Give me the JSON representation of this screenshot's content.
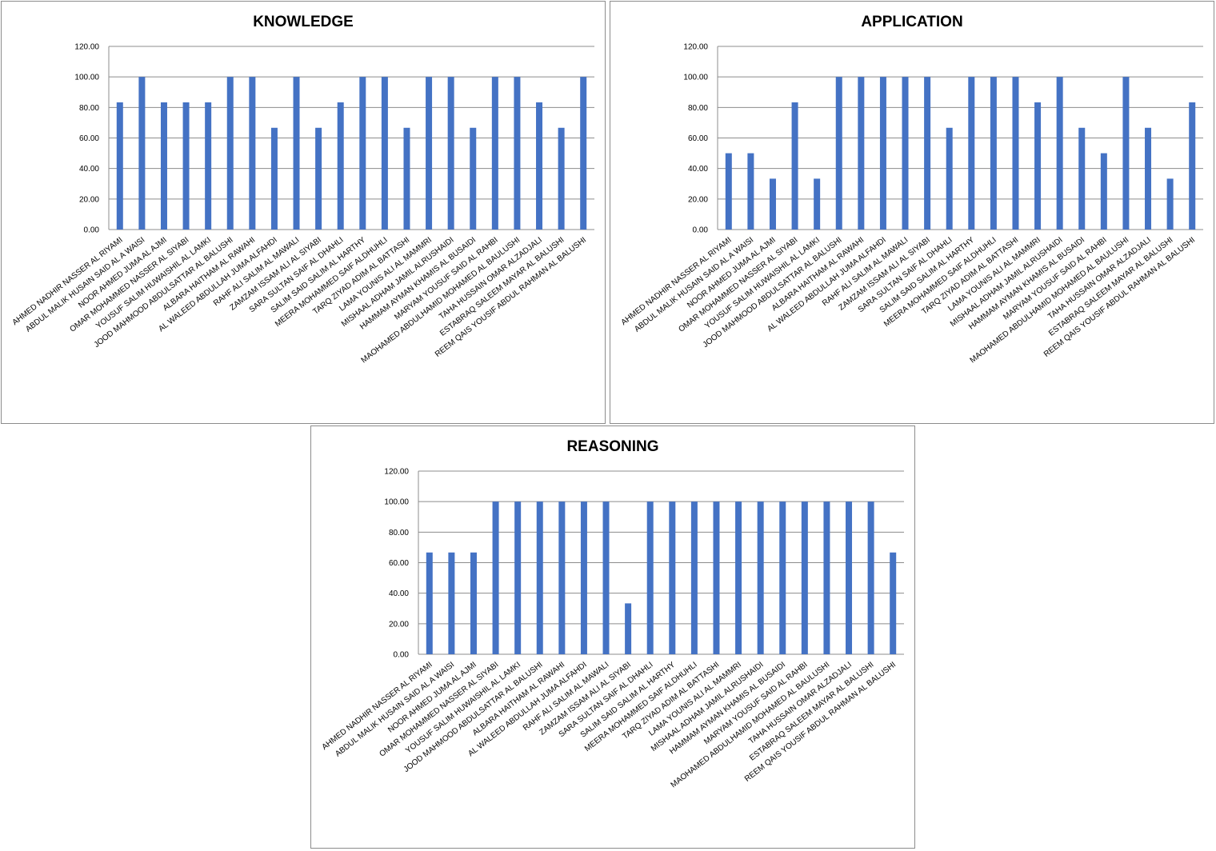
{
  "chart_data": [
    {
      "type": "bar",
      "title": "KNOWLEDGE",
      "categories": [
        "AHMED NADHIR NASSER AL RIYAMI",
        "ABDUL  MALIK HUSAIN SAID AL A WAISI",
        "NOOR AHMED JUMA AL AJMI",
        "OMAR MOHAMMED NASSER AL SIYABI",
        "YOUSUF SALIM HUWAISHIL AL LAMKI",
        "JOOD MAHMOOD ABDULSATTAR AL BALUSHI",
        "ALBARA HAITHAM  AL RAWAHI",
        "AL WALEED ABDULLAH JUMA ALFAHDI",
        "RAHF ALI SALIM AL MAWALI",
        "ZAMZAM ISSAM ALI AL SIYABI",
        "SARA SULTAN SAIF AL DHAHLI",
        "SALIM SAID SALIM AL HARTHY",
        "MEERA MOHAMMED  SAIF ALDHUHLI",
        "TARQ ZIYAD ADIM AL BATTASHI",
        "LAMA YOUNIS ALI AL MAMMRI",
        "MISHAAL ADHAM JAMIL ALRUSHAIDI",
        "HAMMAM AYMAN KHAMIS AL BUSAIDI",
        "MARYAM YOUSUF SAID AL RAHBI",
        "MAOHAMED ABDULHAMID MOHAMED AL BAULUSHI",
        "TAHA HUSSAIN OMAR ALZADJALI",
        "ESTABRAQ SALEEM MAYAR AL BALUSHI",
        "REEM QAIS YOUSIF ABDUL RAHMAN AL BALUSHI"
      ],
      "values": [
        83.33,
        100,
        83.33,
        83.33,
        83.33,
        100,
        100,
        66.67,
        100,
        66.67,
        83.33,
        100,
        100,
        66.67,
        100,
        100,
        66.67,
        100,
        100,
        83.33,
        66.67,
        100
      ],
      "color": "#4472c4",
      "ylim": [
        0,
        120
      ],
      "yticks": [
        {
          "value": 0,
          "label": "0.00"
        },
        {
          "value": 20,
          "label": "20.00"
        },
        {
          "value": 40,
          "label": "40.00"
        },
        {
          "value": 60,
          "label": "60.00"
        },
        {
          "value": 80,
          "label": "80.00"
        },
        {
          "value": 100,
          "label": "100.00"
        },
        {
          "value": 120,
          "label": "120.00"
        }
      ],
      "grid": true
    },
    {
      "type": "bar",
      "title": "APPLICATION",
      "categories": [
        "AHMED NADHIR NASSER AL RIYAMI",
        "ABDUL  MALIK HUSAIN SAID AL A WAISI",
        "NOOR AHMED JUMA AL AJMI",
        "OMAR MOHAMMED NASSER AL SIYABI",
        "YOUSUF SALIM HUWAISHIL AL LAMKI",
        "JOOD MAHMOOD ABDULSATTAR AL BALUSHI",
        "ALBARA HAITHAM  AL RAWAHI",
        "AL WALEED ABDULLAH JUMA ALFAHDI",
        "RAHF ALI SALIM AL MAWALI",
        "ZAMZAM ISSAM ALI AL SIYABI",
        "SARA SULTAN SAIF AL DHAHLI",
        "SALIM SAID SALIM AL HARTHY",
        "MEERA MOHAMMED  SAIF ALDHUHLI",
        "TARQ ZIYAD ADIM AL BATTASHI",
        "LAMA YOUNIS ALI AL MAMMRI",
        "MISHAAL ADHAM JAMIL ALRUSHAIDI",
        "HAMMAM AYMAN KHAMIS AL BUSAIDI",
        "MARYAM YOUSUF SAID AL RAHBI",
        "MAOHAMED ABDULHAMID MOHAMED AL BAULUSHI",
        "TAHA HUSSAIN OMAR ALZADJALI",
        "ESTABRAQ SALEEM MAYAR AL BALUSHI",
        "REEM QAIS YOUSIF ABDUL RAHMAN AL BALUSHI"
      ],
      "values": [
        50,
        50,
        33.33,
        83.33,
        33.33,
        100,
        100,
        100,
        100,
        100,
        66.67,
        100,
        100,
        100,
        83.33,
        100,
        66.67,
        50,
        100,
        66.67,
        33.33,
        83.33
      ],
      "color": "#4472c4",
      "ylim": [
        0,
        120
      ],
      "yticks": [
        {
          "value": 0,
          "label": "0.00"
        },
        {
          "value": 20,
          "label": "20.00"
        },
        {
          "value": 40,
          "label": "40.00"
        },
        {
          "value": 60,
          "label": "60.00"
        },
        {
          "value": 80,
          "label": "80.00"
        },
        {
          "value": 100,
          "label": "100.00"
        },
        {
          "value": 120,
          "label": "120.00"
        }
      ],
      "grid": true
    },
    {
      "type": "bar",
      "title": "REASONING",
      "categories": [
        "AHMED NADHIR NASSER AL RIYAMI",
        "ABDUL  MALIK HUSAIN SAID AL A WAISI",
        "NOOR AHMED JUMA AL AJMI",
        "OMAR MOHAMMED NASSER AL SIYABI",
        "YOUSUF SALIM HUWAISHIL AL LAMKI",
        "JOOD MAHMOOD ABDULSATTAR AL BALUSHI",
        "ALBARA HAITHAM  AL RAWAHI",
        "AL WALEED ABDULLAH JUMA ALFAHDI",
        "RAHF ALI SALIM AL MAWALI",
        "ZAMZAM ISSAM ALI AL SIYABI",
        "SARA SULTAN SAIF AL DHAHLI",
        "SALIM SAID SALIM AL HARTHY",
        "MEERA MOHAMMED  SAIF ALDHUHLI",
        "TARQ ZIYAD ADIM AL BATTASHI",
        "LAMA YOUNIS ALI AL MAMMRI",
        "MISHAAL ADHAM JAMIL ALRUSHAIDI",
        "HAMMAM AYMAN KHAMIS AL BUSAIDI",
        "MARYAM YOUSUF SAID AL RAHBI",
        "MAOHAMED ABDULHAMID MOHAMED AL BAULUSHI",
        "TAHA HUSSAIN OMAR ALZADJALI",
        "ESTABRAQ SALEEM MAYAR AL BALUSHI",
        "REEM QAIS YOUSIF ABDUL RAHMAN AL BALUSHI"
      ],
      "values": [
        66.67,
        66.67,
        66.67,
        100,
        100,
        100,
        100,
        100,
        100,
        33.33,
        100,
        100,
        100,
        100,
        100,
        100,
        100,
        100,
        100,
        100,
        100,
        66.67
      ],
      "color": "#4472c4",
      "ylim": [
        0,
        120
      ],
      "yticks": [
        {
          "value": 0,
          "label": "0.00"
        },
        {
          "value": 20,
          "label": "20.00"
        },
        {
          "value": 40,
          "label": "40.00"
        },
        {
          "value": 60,
          "label": "60.00"
        },
        {
          "value": 80,
          "label": "80.00"
        },
        {
          "value": 100,
          "label": "100.00"
        },
        {
          "value": 120,
          "label": "120.00"
        }
      ],
      "grid": true
    }
  ]
}
